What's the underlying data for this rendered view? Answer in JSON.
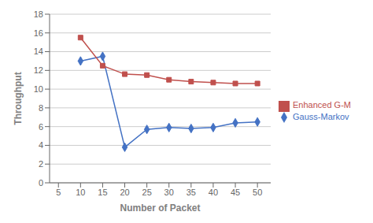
{
  "chart_data": {
    "type": "line",
    "x": [
      10,
      15,
      20,
      25,
      30,
      35,
      40,
      45,
      50
    ],
    "series": [
      {
        "name": "Gauss-Markov",
        "color": "#4472C4",
        "marker": "diamond",
        "values": [
          13.0,
          13.5,
          3.8,
          5.7,
          5.9,
          5.8,
          5.9,
          6.4,
          6.5
        ]
      },
      {
        "name": "Enhanced G-M",
        "color": "#C0504D",
        "marker": "square",
        "values": [
          15.5,
          12.5,
          11.6,
          11.5,
          11.0,
          10.8,
          10.7,
          10.6,
          10.6
        ]
      }
    ],
    "xlabel": "Number of Packet",
    "ylabel": "Throughput",
    "xlim": [
      3,
      53
    ],
    "xticks": [
      5,
      10,
      15,
      20,
      25,
      30,
      35,
      40,
      45,
      50
    ],
    "ylim": [
      0,
      18
    ],
    "yticks": [
      0,
      2,
      4,
      6,
      8,
      10,
      12,
      14,
      16,
      18
    ],
    "grid": "y",
    "legend": "right"
  }
}
